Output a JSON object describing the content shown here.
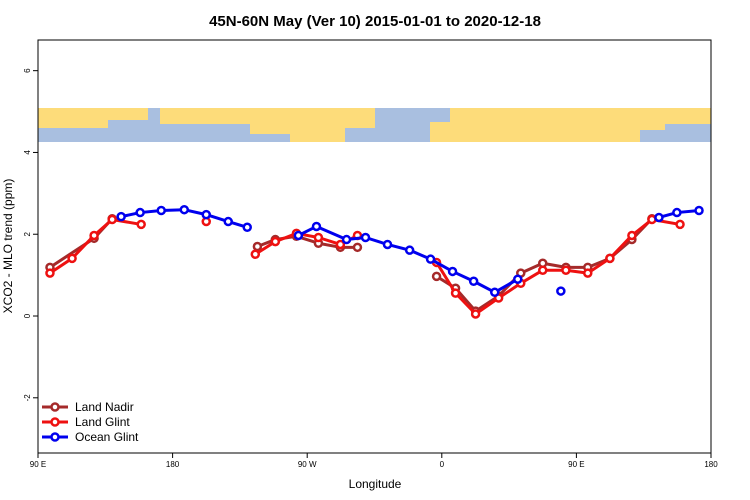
{
  "chart_data": {
    "type": "line",
    "title": "45N-60N May (Ver 10)   2015-01-01 to 2020-12-18",
    "xlabel": "Longitude",
    "ylabel": "XCO2 - MLO trend (ppm)",
    "xlim": [
      90,
      540
    ],
    "ylim": [
      -3.35,
      6.75
    ],
    "xticks": [
      {
        "value": 90,
        "label": "90 E"
      },
      180,
      {
        "value": 270,
        "label": "90 W"
      },
      {
        "value": 360,
        "label": "0"
      },
      {
        "value": 450,
        "label": "90 E"
      },
      {
        "value": 540,
        "label": "180"
      }
    ],
    "yticks": [
      -2,
      0,
      2,
      4,
      6
    ],
    "legend": "bottom-left",
    "series": [
      {
        "name": "Land Nadir",
        "color": "#a52a2a",
        "x": [
          98,
          127.5,
          139.6,
          null,
          236.7,
          248.7,
          262.8,
          277.5,
          292.2,
          303.6,
          null,
          356.5,
          369.2,
          382.6,
          398,
          412.8,
          427.5,
          443,
          457.6,
          472.4,
          487.1,
          500.5
        ],
        "values": [
          1.19,
          1.9,
          2.38,
          null,
          1.7,
          1.87,
          1.95,
          1.78,
          1.68,
          1.68,
          null,
          0.97,
          0.68,
          0.12,
          0.49,
          1.05,
          1.29,
          1.19,
          1.19,
          1.41,
          1.87,
          2.38
        ]
      },
      {
        "name": "Land Glint",
        "color": "#ee1111",
        "x": [
          98,
          112.8,
          127.5,
          139.6,
          159,
          null,
          202.5,
          null,
          235.3,
          248.7,
          262.8,
          277.5,
          292.2,
          303.6,
          null,
          356.5,
          369.2,
          382.6,
          398,
          412.8,
          427.5,
          443,
          457.6,
          472.4,
          487.1,
          500.5,
          519.3
        ],
        "values": [
          1.05,
          1.41,
          1.97,
          2.36,
          2.24,
          null,
          2.31,
          null,
          1.51,
          1.82,
          2.02,
          1.92,
          1.75,
          1.97,
          null,
          1.31,
          0.56,
          0.05,
          0.44,
          0.8,
          1.12,
          1.12,
          1.05,
          1.41,
          1.97,
          2.36,
          2.24
        ]
      },
      {
        "name": "Ocean Glint",
        "color": "#0000ee",
        "x": [
          145.6,
          158.3,
          172.4,
          187.8,
          202.5,
          217.2,
          229.9,
          null,
          264.1,
          276.2,
          296.3,
          309,
          323.7,
          338.5,
          352.5,
          367.2,
          381.3,
          395.4,
          410.8,
          null,
          439.6,
          null,
          505.2,
          517.2,
          532
        ],
        "values": [
          2.43,
          2.53,
          2.58,
          2.6,
          2.48,
          2.31,
          2.17,
          null,
          1.97,
          2.19,
          1.87,
          1.92,
          1.75,
          1.61,
          1.39,
          1.09,
          0.85,
          0.58,
          0.9,
          null,
          0.61,
          null,
          2.41,
          2.53,
          2.58
        ]
      }
    ]
  }
}
